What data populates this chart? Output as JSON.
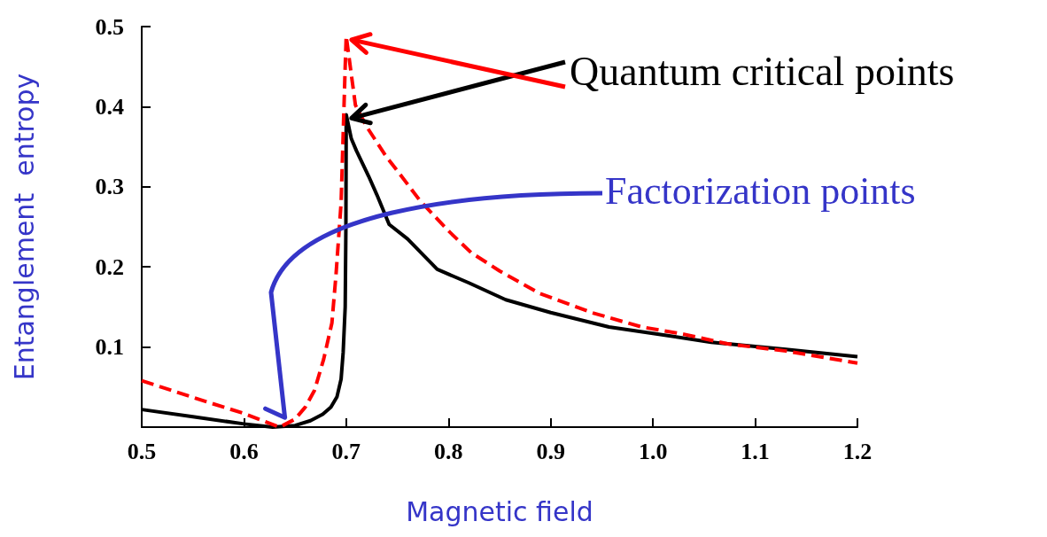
{
  "chart_data": {
    "type": "line",
    "xlabel": "Magnetic field",
    "ylabel": "Entanglement  entropy",
    "annotations": [
      {
        "text": "Quantum critical points",
        "x": 0.7,
        "y": 0.488
      },
      {
        "text": "Factorization points",
        "x": 0.64,
        "y": 0.012
      }
    ],
    "xlim": [
      0.5,
      1.2
    ],
    "xticks": [
      0.5,
      0.6,
      0.7,
      0.8,
      0.9,
      {
        "value": 1.0,
        "label": "1.0"
      },
      1.1,
      1.2
    ],
    "ylim": [
      0,
      0.5
    ],
    "yticks": [
      {
        "value": 0,
        "label": null
      },
      0.1,
      0.2,
      0.3,
      0.4,
      0.5
    ],
    "grid": false,
    "marker": "none",
    "series": [
      {
        "color": "#000000",
        "line_style": "solid",
        "x": [
          0.5,
          0.55,
          0.6,
          0.628,
          0.65,
          0.665,
          0.677,
          0.685,
          0.691,
          0.695,
          0.697,
          0.699,
          0.6997,
          0.7,
          0.705,
          0.71,
          0.722,
          0.73,
          0.742,
          0.76,
          0.789,
          0.82,
          0.856,
          0.9,
          0.957,
          1.0,
          1.057,
          1.13,
          1.2
        ],
        "values": [
          0.022,
          0.013,
          0.004,
          0,
          0.002,
          0.008,
          0.016,
          0.025,
          0.038,
          0.06,
          0.093,
          0.15,
          0.25,
          0.39,
          0.36,
          0.345,
          0.313,
          0.29,
          0.253,
          0.235,
          0.197,
          0.18,
          0.159,
          0.143,
          0.125,
          0.117,
          0.106,
          0.097,
          0.088
        ]
      },
      {
        "color": "#ff0000",
        "line_style": "dashed",
        "x": [
          0.5,
          0.56,
          0.6,
          0.635,
          0.65,
          0.66,
          0.669,
          0.678,
          0.686,
          0.69,
          0.695,
          0.699,
          0.7,
          0.705,
          0.709,
          0.72,
          0.739,
          0.75,
          0.772,
          0.8,
          0.822,
          0.85,
          0.889,
          0.94,
          0.989,
          1.03,
          1.073,
          1.13,
          1.2
        ],
        "values": [
          0.058,
          0.033,
          0.017,
          0,
          0.01,
          0.025,
          0.046,
          0.085,
          0.13,
          0.19,
          0.28,
          0.45,
          0.488,
          0.44,
          0.402,
          0.375,
          0.338,
          0.32,
          0.283,
          0.245,
          0.218,
          0.195,
          0.167,
          0.143,
          0.125,
          0.116,
          0.104,
          0.095,
          0.08
        ]
      }
    ]
  }
}
